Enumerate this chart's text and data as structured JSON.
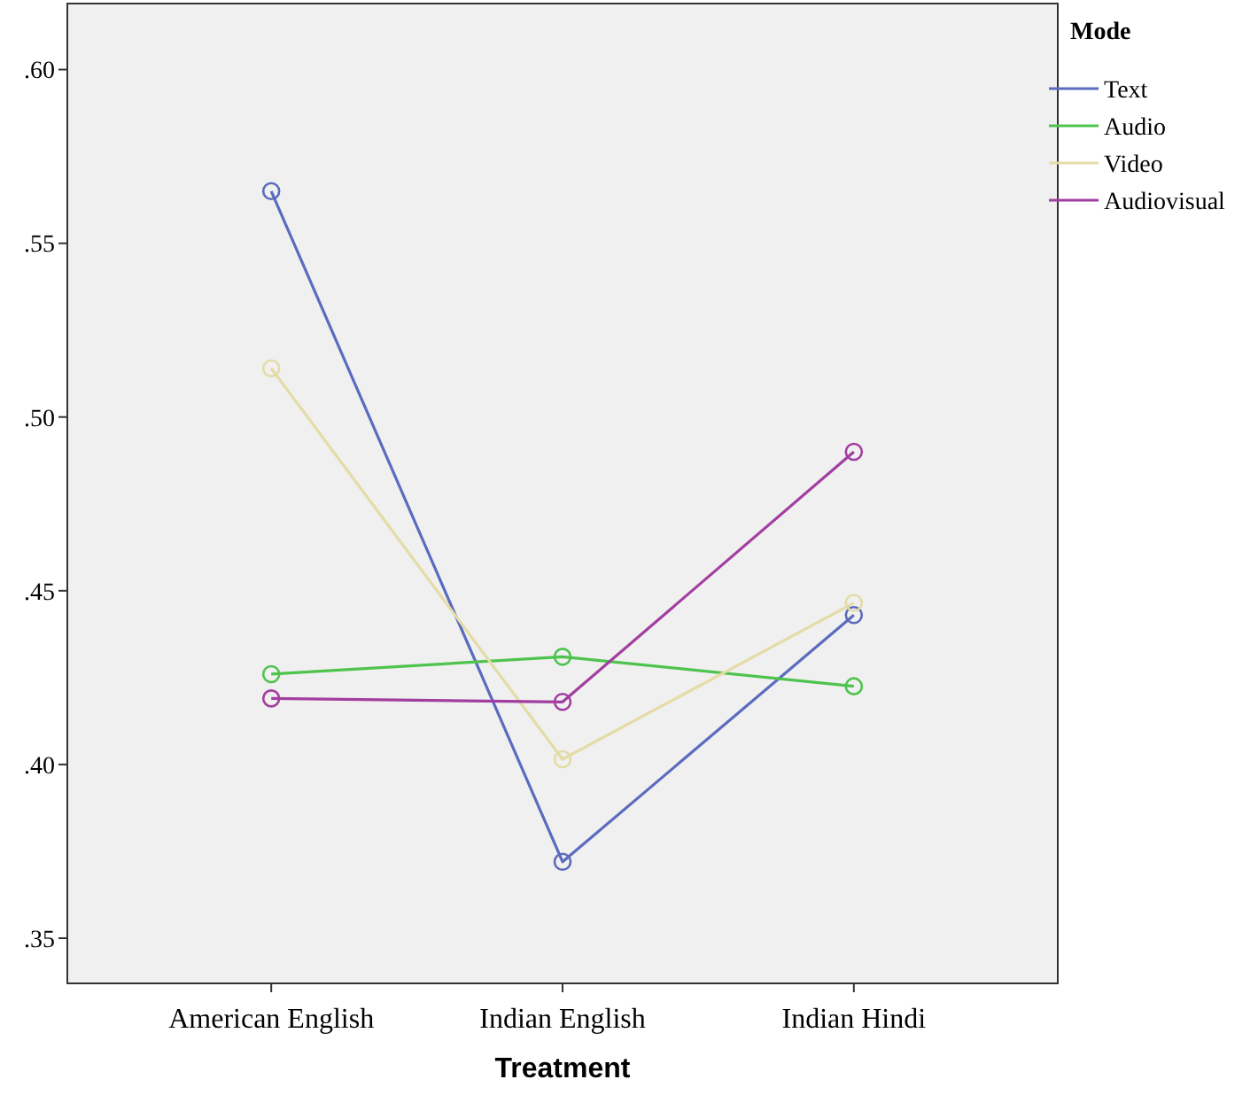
{
  "chart_data": {
    "type": "line",
    "xlabel": "Treatment",
    "legend_title": "Mode",
    "categories": [
      "American English",
      "Indian English",
      "Indian Hindi"
    ],
    "series": [
      {
        "name": "Text",
        "color": "#5b6bbf",
        "values": [
          0.565,
          0.372,
          0.443
        ]
      },
      {
        "name": "Audio",
        "color": "#4ec34e",
        "values": [
          0.426,
          0.431,
          0.4225
        ]
      },
      {
        "name": "Video",
        "color": "#e3dca6",
        "values": [
          0.514,
          0.4015,
          0.4465
        ]
      },
      {
        "name": "Audiovisual",
        "color": "#a23ea0",
        "values": [
          0.419,
          0.418,
          0.49
        ]
      }
    ],
    "ylim": [
      0.337,
      0.619
    ],
    "yticks": [
      {
        "value": 0.35,
        "label": ".35"
      },
      {
        "value": 0.4,
        "label": ".40"
      },
      {
        "value": 0.45,
        "label": ".45"
      },
      {
        "value": 0.5,
        "label": ".50"
      },
      {
        "value": 0.55,
        "label": ".55"
      },
      {
        "value": 0.6,
        "label": ".60"
      }
    ],
    "marker": "circle",
    "legend": "top right",
    "grid": false
  }
}
